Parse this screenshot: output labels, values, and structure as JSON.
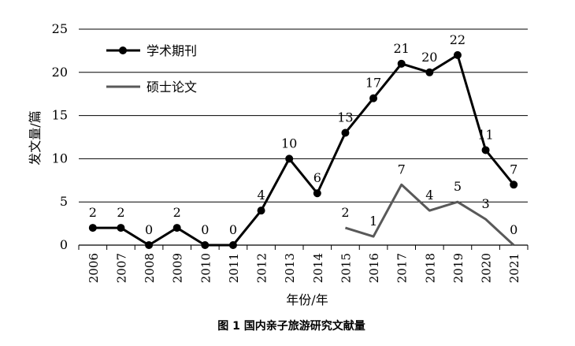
{
  "chart_data": {
    "type": "line",
    "title": "",
    "caption": "图 1   国内亲子旅游研究文献量",
    "xlabel": "年份/年",
    "ylabel": "发文量/篇",
    "ylim": [
      0,
      25
    ],
    "yticks": [
      "0",
      "5",
      "10",
      "15",
      "20",
      "25"
    ],
    "grid": "horizontal",
    "legend_position": "top-left",
    "x": [
      "2006",
      "2007",
      "2008",
      "2009",
      "2010",
      "2011",
      "2012",
      "2013",
      "2014",
      "2015",
      "2016",
      "2017",
      "2018",
      "2019",
      "2020",
      "2021"
    ],
    "series": [
      {
        "name": "学术期刊",
        "color": "#000000",
        "marker": "circle",
        "values": [
          2,
          2,
          0,
          2,
          0,
          0,
          4,
          10,
          6,
          13,
          17,
          21,
          20,
          22,
          11,
          7
        ]
      },
      {
        "name": "硕士论文",
        "color": "#595959",
        "marker": "none",
        "values": [
          null,
          null,
          null,
          null,
          null,
          null,
          null,
          null,
          null,
          2,
          1,
          7,
          4,
          5,
          3,
          0
        ]
      }
    ]
  }
}
